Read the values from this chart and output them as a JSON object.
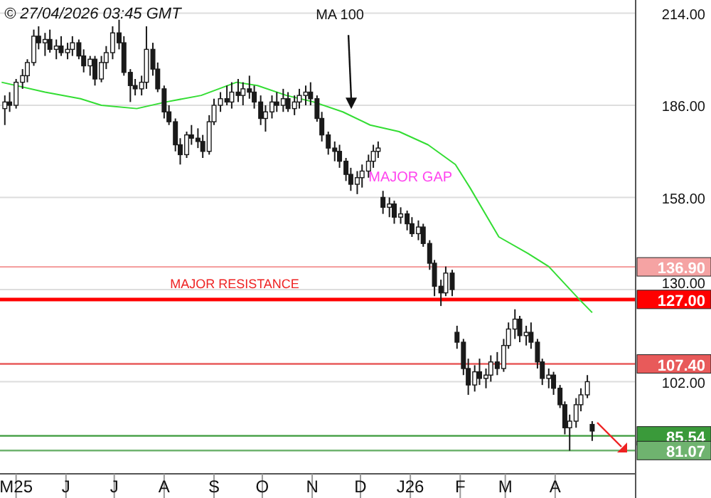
{
  "chart_data": {
    "type": "candlestick",
    "x": [
      "2025-04-24",
      "2025-04-27",
      "2025-05-01",
      "2025-05-05",
      "2025-05-08",
      "2025-05-12",
      "2025-05-15",
      "2025-05-19",
      "2025-05-22",
      "2025-05-26",
      "2025-05-29",
      "2025-06-02",
      "2025-06-05",
      "2025-06-09",
      "2025-06-12",
      "2025-06-16",
      "2025-06-19",
      "2025-06-23",
      "2025-06-26",
      "2025-06-30",
      "2025-07-04",
      "2025-07-07",
      "2025-07-11",
      "2025-07-14",
      "2025-07-18",
      "2025-07-21",
      "2025-07-25",
      "2025-07-28",
      "2025-08-01",
      "2025-08-04",
      "2025-08-08",
      "2025-08-11",
      "2025-08-15",
      "2025-08-18",
      "2025-08-22",
      "2025-08-25",
      "2025-08-29",
      "2025-09-01",
      "2025-09-05",
      "2025-09-09",
      "2025-09-12",
      "2025-09-16",
      "2025-09-19",
      "2025-09-23",
      "2025-09-26",
      "2025-09-30",
      "2025-10-03",
      "2025-10-07",
      "2025-10-10",
      "2025-10-14",
      "2025-10-17",
      "2025-10-21",
      "2025-10-24",
      "2025-10-28",
      "2025-10-31",
      "2025-11-04",
      "2025-11-07",
      "2025-11-11",
      "2025-11-15",
      "2025-11-18",
      "2025-11-22",
      "2025-11-25",
      "2025-11-29",
      "2025-12-02",
      "2025-12-06",
      "2025-12-09",
      "2025-12-12",
      "2025-12-15",
      "2025-12-19",
      "2025-12-22",
      "2025-12-26",
      "2025-12-30",
      "2026-01-02",
      "2026-01-06",
      "2026-01-09",
      "2026-01-13",
      "2026-01-16",
      "2026-01-20",
      "2026-01-23",
      "2026-01-27",
      "2026-01-30",
      "2026-02-03",
      "2026-02-06",
      "2026-02-10",
      "2026-02-13",
      "2026-02-17",
      "2026-02-20",
      "2026-02-24",
      "2026-02-28",
      "2026-03-03",
      "2026-03-07",
      "2026-03-10",
      "2026-03-14",
      "2026-03-17",
      "2026-03-21",
      "2026-03-24",
      "2026-03-28",
      "2026-03-31",
      "2026-04-04",
      "2026-04-07",
      "2026-04-10",
      "2026-04-14",
      "2026-04-17",
      "2026-04-21",
      "2026-04-24"
    ],
    "ohlc": [
      [
        185,
        189,
        180,
        187
      ],
      [
        187,
        190,
        184,
        186
      ],
      [
        186,
        194,
        185,
        193
      ],
      [
        193,
        197,
        191,
        195
      ],
      [
        195,
        200,
        193,
        199
      ],
      [
        199,
        209,
        198,
        207
      ],
      [
        207,
        210,
        203,
        205
      ],
      [
        205,
        208,
        201,
        206
      ],
      [
        206,
        209,
        202,
        203
      ],
      [
        203,
        206,
        200,
        204
      ],
      [
        204,
        207,
        201,
        202
      ],
      [
        202,
        205,
        200,
        203
      ],
      [
        203,
        207,
        201,
        205
      ],
      [
        205,
        206,
        200,
        201
      ],
      [
        201,
        203,
        196,
        198
      ],
      [
        198,
        201,
        195,
        200
      ],
      [
        200,
        201,
        192,
        194
      ],
      [
        194,
        201,
        193,
        199
      ],
      [
        199,
        204,
        197,
        202
      ],
      [
        202,
        210,
        200,
        208
      ],
      [
        208,
        212,
        203,
        205
      ],
      [
        205,
        207,
        195,
        196
      ],
      [
        196,
        197,
        187,
        192
      ],
      [
        192,
        194,
        189,
        191
      ],
      [
        191,
        195,
        189,
        193
      ],
      [
        193,
        210,
        191,
        203
      ],
      [
        203,
        205,
        195,
        197
      ],
      [
        197,
        199,
        190,
        191
      ],
      [
        191,
        192,
        182,
        184
      ],
      [
        184,
        186,
        180,
        181
      ],
      [
        181,
        182,
        172,
        174
      ],
      [
        174,
        176,
        168,
        171
      ],
      [
        171,
        178,
        170,
        177
      ],
      [
        177,
        180,
        174,
        176
      ],
      [
        176,
        179,
        173,
        175
      ],
      [
        175,
        177,
        170,
        172
      ],
      [
        172,
        183,
        171,
        181
      ],
      [
        181,
        188,
        180,
        186
      ],
      [
        186,
        190,
        184,
        188
      ],
      [
        188,
        192,
        186,
        187
      ],
      [
        187,
        193,
        185,
        190
      ],
      [
        190,
        194,
        187,
        189
      ],
      [
        189,
        193,
        186,
        191
      ],
      [
        191,
        195,
        188,
        190
      ],
      [
        190,
        192,
        185,
        187
      ],
      [
        187,
        189,
        180,
        182
      ],
      [
        182,
        186,
        178,
        184
      ],
      [
        184,
        189,
        182,
        187
      ],
      [
        187,
        190,
        184,
        186
      ],
      [
        186,
        191,
        184,
        188
      ],
      [
        188,
        190,
        184,
        185
      ],
      [
        185,
        189,
        183,
        187
      ],
      [
        187,
        191,
        185,
        189
      ],
      [
        189,
        192,
        186,
        190
      ],
      [
        190,
        193,
        186,
        188
      ],
      [
        188,
        189,
        181,
        182
      ],
      [
        182,
        184,
        175,
        177
      ],
      [
        177,
        178,
        171,
        173
      ],
      [
        173,
        175,
        169,
        172
      ],
      [
        172,
        174,
        167,
        169
      ],
      [
        169,
        170,
        163,
        165
      ],
      [
        165,
        167,
        160,
        162
      ],
      [
        162,
        166,
        159,
        164
      ],
      [
        164,
        168,
        161,
        166
      ],
      [
        166,
        171,
        164,
        169
      ],
      [
        169,
        174,
        167,
        172
      ],
      [
        172,
        175,
        170,
        173
      ],
      [
        158,
        160,
        153,
        155
      ],
      [
        155,
        158,
        152,
        156
      ],
      [
        156,
        157,
        150,
        152
      ],
      [
        152,
        155,
        150,
        153
      ],
      [
        153,
        154,
        148,
        150
      ],
      [
        150,
        152,
        146,
        147
      ],
      [
        147,
        151,
        145,
        149
      ],
      [
        149,
        150,
        143,
        144
      ],
      [
        144,
        145,
        136,
        138
      ],
      [
        138,
        139,
        128,
        131
      ],
      [
        131,
        133,
        125,
        129
      ],
      [
        129,
        137,
        128,
        135
      ],
      [
        135,
        136,
        128,
        130
      ],
      [
        117,
        119,
        112,
        114
      ],
      [
        114,
        115,
        104,
        106
      ],
      [
        106,
        109,
        98,
        101
      ],
      [
        101,
        107,
        99,
        105
      ],
      [
        105,
        109,
        101,
        103
      ],
      [
        103,
        106,
        100,
        104
      ],
      [
        104,
        110,
        102,
        108
      ],
      [
        108,
        111,
        104,
        106
      ],
      [
        106,
        115,
        105,
        113
      ],
      [
        113,
        120,
        112,
        118
      ],
      [
        118,
        124,
        115,
        121
      ],
      [
        121,
        122,
        114,
        116
      ],
      [
        116,
        119,
        113,
        117
      ],
      [
        117,
        120,
        112,
        114
      ],
      [
        114,
        115,
        106,
        108
      ],
      [
        108,
        109,
        101,
        103
      ],
      [
        103,
        106,
        100,
        104
      ],
      [
        104,
        105,
        98,
        100
      ],
      [
        100,
        101,
        94,
        95
      ],
      [
        95,
        96,
        86,
        88
      ],
      [
        88,
        92,
        81,
        90
      ],
      [
        90,
        97,
        88,
        95
      ],
      [
        95,
        100,
        93,
        98
      ],
      [
        98,
        104,
        97,
        102
      ],
      [
        89,
        90,
        84,
        87
      ]
    ],
    "color": "#1a1a1a",
    "series": [
      {
        "name": "MA 100",
        "type": "line",
        "color": "#33dd33",
        "x": [
          "2025-04-22",
          "2025-05-19",
          "2025-06-10",
          "2025-06-23",
          "2025-07-15",
          "2025-08-02",
          "2025-08-24",
          "2025-09-15",
          "2025-09-28",
          "2025-10-16",
          "2025-11-02",
          "2025-11-20",
          "2025-12-07",
          "2025-12-25",
          "2026-01-12",
          "2026-01-29",
          "2026-02-07",
          "2026-02-25",
          "2026-03-15",
          "2026-03-28",
          "2026-04-16",
          "2026-04-24"
        ],
        "values": [
          193,
          190,
          188,
          186,
          185,
          187,
          189,
          193,
          192,
          189,
          187,
          184,
          180,
          178,
          174,
          168,
          161,
          146,
          141,
          137,
          127,
          123
        ]
      }
    ],
    "xlim": [
      "2025-04-21",
      "2026-05-21"
    ],
    "xticks": [
      {
        "value": "2025-05-01",
        "label": "M25"
      },
      {
        "value": "2025-06-01",
        "label": "J"
      },
      {
        "value": "2025-07-01",
        "label": "J"
      },
      {
        "value": "2025-08-01",
        "label": "A"
      },
      {
        "value": "2025-09-01",
        "label": "S"
      },
      {
        "value": "2025-10-01",
        "label": "O"
      },
      {
        "value": "2025-11-01",
        "label": "N"
      },
      {
        "value": "2025-12-01",
        "label": "D"
      },
      {
        "value": "2026-01-01",
        "label": "J26"
      },
      {
        "value": "2026-02-01",
        "label": "F"
      },
      {
        "value": "2026-03-01",
        "label": "M"
      },
      {
        "value": "2026-04-01",
        "label": "A"
      }
    ],
    "ylim": [
      74,
      218
    ],
    "yticks": [
      {
        "value": 102,
        "label": "102.00"
      },
      {
        "value": 130,
        "label": "130.00"
      },
      {
        "value": 158,
        "label": "158.00"
      },
      {
        "value": 186,
        "label": "186.00"
      },
      {
        "value": 214,
        "label": "214.00"
      }
    ],
    "grid": "y",
    "ref_lines": [
      {
        "axis": "y",
        "value": 136.9,
        "label": "136.90",
        "color": "#f5a3a3"
      },
      {
        "axis": "y",
        "value": 127,
        "label": "127.00",
        "color": "#ff0000"
      },
      {
        "axis": "y",
        "value": 107.4,
        "label": "107.40",
        "color": "#e85a5a"
      },
      {
        "axis": "y",
        "value": 85.54,
        "label": "85.54",
        "color": "#3a9a3a"
      },
      {
        "axis": "y",
        "value": 81.07,
        "label": "81.07",
        "color": "#6fb36f"
      }
    ],
    "annotations": [
      "© 27/04/2026 03:45 GMT",
      {
        "text": "MAJOR GAP",
        "x": "2025-12-06",
        "y": 164.5
      },
      "MAJOR RESISTANCE"
    ]
  }
}
